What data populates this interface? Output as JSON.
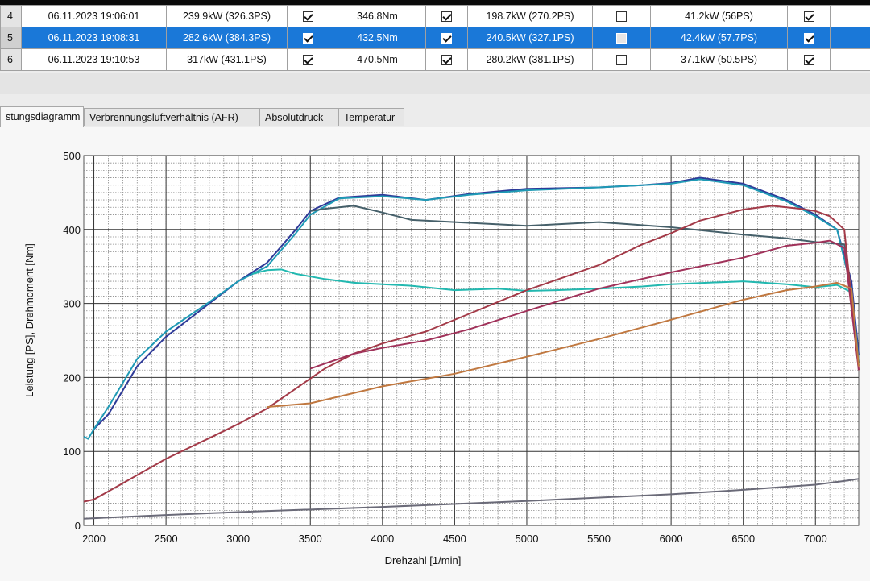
{
  "table": {
    "rows": [
      {
        "idx": "4",
        "date": "06.11.2023 19:06:01",
        "power": "239.9kW (326.3PS)",
        "c1": true,
        "torque": "346.8Nm",
        "c2": true,
        "wheel": "198.7kW (270.2PS)",
        "c3": false,
        "loss": "41.2kW (56PS)",
        "c4": true,
        "selected": false
      },
      {
        "idx": "5",
        "date": "06.11.2023 19:08:31",
        "power": "282.6kW (384.3PS)",
        "c1": true,
        "torque": "432.5Nm",
        "c2": true,
        "wheel": "240.5kW (327.1PS)",
        "c3": false,
        "loss": "42.4kW (57.7PS)",
        "c4": true,
        "selected": true
      },
      {
        "idx": "6",
        "date": "06.11.2023 19:10:53",
        "power": "317kW (431.1PS)",
        "c1": true,
        "torque": "470.5Nm",
        "c2": true,
        "wheel": "280.2kW (381.1PS)",
        "c3": false,
        "loss": "37.1kW (50.5PS)",
        "c4": true,
        "selected": false
      }
    ]
  },
  "tabs": [
    {
      "label": "stungsdiagramm",
      "active": true
    },
    {
      "label": "Verbrennungsluftverhältnis (AFR)",
      "active": false
    },
    {
      "label": "Absolutdruck",
      "active": false
    },
    {
      "label": "Temperatur",
      "active": false
    }
  ],
  "chart_data": {
    "type": "line",
    "xlabel": "Drehzahl [1/min]",
    "ylabel": "Leistung [PS], Drehmoment [Nm]",
    "xlim": [
      1930,
      7300
    ],
    "ylim": [
      0,
      500
    ],
    "x_ticks": [
      2000,
      2500,
      3000,
      3500,
      4000,
      4500,
      5000,
      5500,
      6000,
      6500,
      7000
    ],
    "y_ticks": [
      0,
      100,
      200,
      300,
      400,
      500
    ],
    "grid": true,
    "series": [
      {
        "color": "#2e3a98",
        "x": [
          2000,
          2100,
          2300,
          2500,
          2800,
          3000,
          3200,
          3400,
          3500,
          3700,
          4000,
          4300,
          4600,
          5000,
          5500,
          5800,
          6000,
          6200,
          6500,
          6800,
          7000,
          7150,
          7250,
          7300
        ],
        "values": [
          130,
          150,
          215,
          255,
          300,
          330,
          355,
          400,
          425,
          443,
          447,
          440,
          448,
          455,
          457,
          460,
          463,
          470,
          462,
          440,
          420,
          400,
          330,
          230
        ]
      },
      {
        "color": "#1f9ab5",
        "x": [
          1930,
          1960,
          2000,
          2100,
          2300,
          2500,
          2800,
          3000,
          3200,
          3400,
          3500,
          3700,
          4000,
          4300,
          4600,
          5000,
          5500,
          5800,
          6000,
          6200,
          6500,
          6800,
          7000,
          7150,
          7250,
          7300
        ],
        "values": [
          120,
          117,
          130,
          160,
          225,
          262,
          302,
          330,
          350,
          395,
          420,
          442,
          445,
          440,
          447,
          453,
          457,
          460,
          462,
          468,
          460,
          438,
          418,
          400,
          320,
          220
        ]
      },
      {
        "color": "#46606a",
        "x": [
          3500,
          3600,
          3800,
          4000,
          4200,
          4500,
          5000,
          5500,
          6000,
          6500,
          6800,
          7000,
          7200,
          7300
        ],
        "values": [
          425,
          428,
          432,
          423,
          413,
          410,
          405,
          410,
          403,
          393,
          388,
          383,
          380,
          220
        ]
      },
      {
        "color": "#22b8b0",
        "x": [
          3100,
          3200,
          3300,
          3400,
          3600,
          3800,
          4000,
          4200,
          4500,
          4800,
          5000,
          5200,
          5500,
          5800,
          6000,
          6500,
          6800,
          7000,
          7150,
          7250,
          7300
        ],
        "values": [
          340,
          345,
          346,
          340,
          333,
          328,
          326,
          324,
          318,
          320,
          317,
          318,
          320,
          323,
          326,
          330,
          326,
          322,
          325,
          315,
          215
        ]
      },
      {
        "color": "#a33a48",
        "x": [
          1930,
          2000,
          2200,
          2500,
          2800,
          3000,
          3200,
          3400,
          3600,
          3800,
          4000,
          4300,
          4600,
          5000,
          5500,
          5800,
          6000,
          6200,
          6500,
          6700,
          6900,
          7000,
          7100,
          7200,
          7300
        ],
        "values": [
          32,
          35,
          57,
          90,
          118,
          137,
          158,
          185,
          212,
          232,
          246,
          262,
          286,
          318,
          352,
          380,
          395,
          412,
          427,
          432,
          428,
          425,
          418,
          400,
          210
        ]
      },
      {
        "color": "#a0325a",
        "x": [
          3500,
          3800,
          4000,
          4300,
          4600,
          5000,
          5500,
          6000,
          6500,
          6800,
          7000,
          7100,
          7200,
          7300
        ],
        "values": [
          212,
          232,
          240,
          250,
          265,
          290,
          320,
          342,
          362,
          378,
          382,
          385,
          375,
          210
        ]
      },
      {
        "color": "#c07840",
        "x": [
          3200,
          3500,
          4000,
          4500,
          5000,
          5500,
          6000,
          6500,
          6800,
          7000,
          7150,
          7250,
          7300
        ],
        "values": [
          160,
          165,
          188,
          205,
          228,
          252,
          278,
          305,
          318,
          323,
          328,
          320,
          215
        ]
      },
      {
        "color": "#6a6a78",
        "x": [
          1930,
          2500,
          3000,
          4000,
          5000,
          6000,
          6500,
          7000,
          7200,
          7300
        ],
        "values": [
          9,
          14,
          18,
          25,
          33,
          42,
          48,
          55,
          60,
          63
        ]
      }
    ]
  }
}
